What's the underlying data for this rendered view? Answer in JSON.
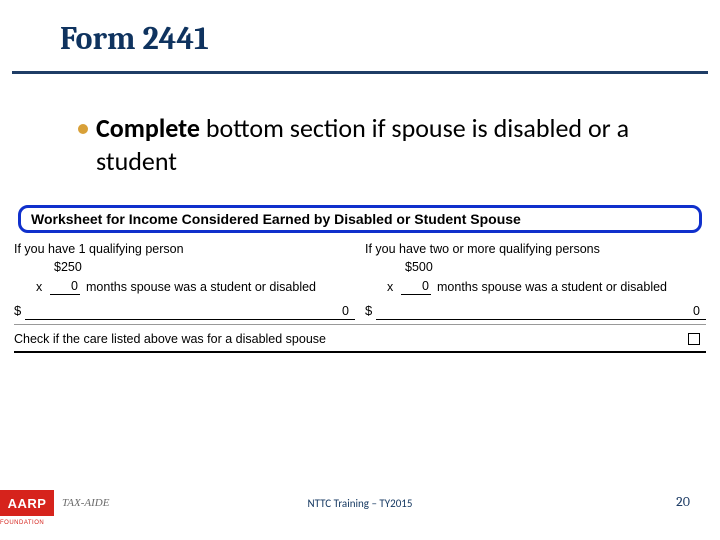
{
  "colors": {
    "title_text": "#0f335f",
    "rule": "#1f3d66",
    "bullet": "#d8a038",
    "highlight_border": "#1030cc",
    "aarp_red": "#d6231c",
    "tax_aide": "#6a6a6a",
    "footer_text": "#173a63",
    "page_num": "#1f3d66"
  },
  "title": "Form 2441",
  "bullet": {
    "strong": "Complete",
    "rest": " bottom section if spouse is disabled or a student"
  },
  "worksheet": {
    "heading": "Worksheet for Income Considered Earned by Disabled or Student Spouse",
    "left": {
      "line1": "If you have 1 qualifying person",
      "amount": "$250",
      "mult": "x",
      "blank_val": "0",
      "line3_rest": "months spouse was a student or disabled",
      "total": "0"
    },
    "right": {
      "line1": "If you have two or more qualifying persons",
      "amount": "$500",
      "mult": "x",
      "blank_val": "0",
      "line3_rest": "months spouse was a student or disabled",
      "total": "0"
    },
    "dollar": "$",
    "check_text": "Check if the care listed above was for a disabled spouse"
  },
  "footer": {
    "aarp": "AARP",
    "foundation": "FOUNDATION",
    "tax_aide": "TAX-AIDE",
    "center": "NTTC Training – TY2015",
    "page": "20"
  }
}
